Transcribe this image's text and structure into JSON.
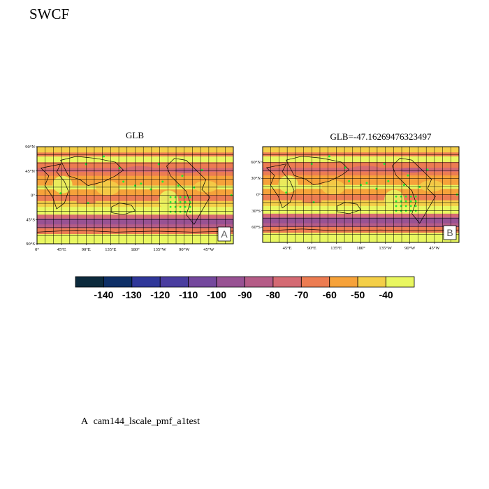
{
  "figure": {
    "title": "SWCF",
    "footer_letter": "A",
    "footer_case": "cam144_lscale_pmf_a1test"
  },
  "panels": [
    {
      "id": "A",
      "title": "GLB",
      "badge": "A",
      "projection": "cylindrical-equidistant",
      "lon_range": [
        0,
        360
      ],
      "lat_range": [
        -90,
        90
      ],
      "y_ticks": [
        "90°N",
        "45°N",
        "0°",
        "45°S",
        "90°S"
      ],
      "x_ticks": [
        "0°",
        "45°E",
        "90°E",
        "135°E",
        "180°",
        "135°W",
        "90°W",
        "45°W"
      ],
      "grid": true,
      "markers": "green-dots"
    },
    {
      "id": "B",
      "title": "GLB=-47.16269476323497",
      "badge": "B",
      "projection": "robinson-like",
      "lon_range": [
        0,
        360
      ],
      "lat_range": [
        -90,
        90
      ],
      "y_ticks": [
        "60°N",
        "30°N",
        "0°",
        "30°S",
        "60°S"
      ],
      "x_ticks": [
        "45°E",
        "90°E",
        "135°E",
        "180°",
        "135°W",
        "90°W",
        "45°W"
      ],
      "grid": true,
      "markers": "green-dots"
    }
  ],
  "colorbar": {
    "labels": [
      "-140",
      "-130",
      "-120",
      "-110",
      "-100",
      "-90",
      "-80",
      "-70",
      "-60",
      "-50",
      "-40"
    ],
    "colors": [
      "#0c2a3c",
      "#0e2f66",
      "#2f3799",
      "#4a3d9f",
      "#74489d",
      "#985293",
      "#b55c87",
      "#d46a73",
      "#ec7c52",
      "#f6a23a",
      "#f4cf48",
      "#e9f761"
    ]
  },
  "colors": {
    "marker": "#22ee33",
    "grid": "#000000",
    "background_field": "#e9f761"
  }
}
